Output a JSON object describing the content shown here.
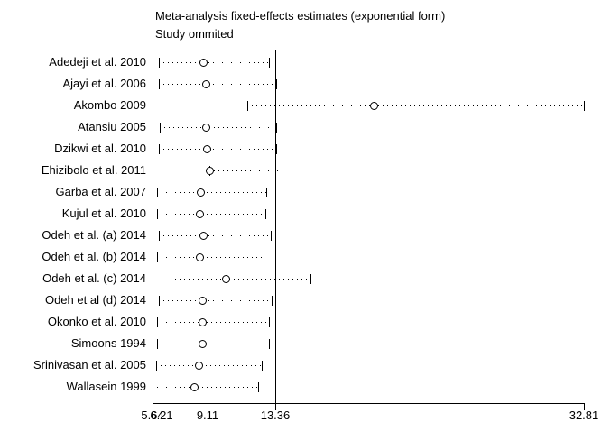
{
  "page": {
    "background": "#ffffff",
    "foreground": "#000000"
  },
  "chart_data": {
    "type": "scatter",
    "variant": "forest-plot-leave-one-out-meta-analysis",
    "title": "Meta-analysis fixed-effects estimates (exponential form)",
    "subtitle": "Study ommited",
    "xlabel": "",
    "ylabel": "",
    "grid": false,
    "legend": false,
    "x_axis": {
      "min": 5.64,
      "max": 32.81,
      "ticks": [
        5.64,
        6.21,
        9.11,
        13.36,
        32.81
      ],
      "tick_labels": [
        "5.64",
        "6.21",
        "9.11",
        "13.36",
        "32.81"
      ]
    },
    "reference_lines": [
      5.64,
      6.21,
      9.11,
      13.36
    ],
    "marker_style": "open-circle",
    "ci_style": "dotted-line-with-end-caps",
    "studies": [
      {
        "label": "Adedeji et al. 2010",
        "ci_lower": 6.05,
        "estimate": 8.85,
        "ci_upper": 13.0
      },
      {
        "label": "Ajayi et al. 2006",
        "ci_lower": 6.05,
        "estimate": 9.05,
        "ci_upper": 13.45
      },
      {
        "label": "Akombo 2009",
        "ci_lower": 11.6,
        "estimate": 19.6,
        "ci_upper": 32.81
      },
      {
        "label": "Atansiu 2005",
        "ci_lower": 6.1,
        "estimate": 9.05,
        "ci_upper": 13.4
      },
      {
        "label": "Dzikwi et al. 2010",
        "ci_lower": 6.05,
        "estimate": 9.1,
        "ci_upper": 13.4
      },
      {
        "label": "Ehizibolo et al. 2011",
        "ci_lower": 9.2,
        "estimate": 9.25,
        "ci_upper": 13.75
      },
      {
        "label": "Garba et al. 2007",
        "ci_lower": 5.95,
        "estimate": 8.7,
        "ci_upper": 12.8
      },
      {
        "label": "Kujul et al. 2010",
        "ci_lower": 5.95,
        "estimate": 8.65,
        "ci_upper": 12.75
      },
      {
        "label": "Odeh et al. (a) 2014",
        "ci_lower": 6.05,
        "estimate": 8.85,
        "ci_upper": 13.1
      },
      {
        "label": "Odeh et al. (b) 2014",
        "ci_lower": 5.95,
        "estimate": 8.6,
        "ci_upper": 12.65
      },
      {
        "label": "Odeh et al. (c) 2014",
        "ci_lower": 6.75,
        "estimate": 10.25,
        "ci_upper": 15.6
      },
      {
        "label": "Odeh et al (d) 2014",
        "ci_lower": 6.05,
        "estimate": 8.8,
        "ci_upper": 13.15
      },
      {
        "label": "Okonko et al. 2010",
        "ci_lower": 5.95,
        "estimate": 8.8,
        "ci_upper": 13.0
      },
      {
        "label": "Simoons 1994",
        "ci_lower": 5.95,
        "estimate": 8.8,
        "ci_upper": 13.0
      },
      {
        "label": "Srinivasan et al. 2005",
        "ci_lower": 5.85,
        "estimate": 8.55,
        "ci_upper": 12.5
      },
      {
        "label": "Wallasein 1999",
        "ci_lower": 5.64,
        "estimate": 8.3,
        "ci_upper": 12.3
      }
    ]
  }
}
